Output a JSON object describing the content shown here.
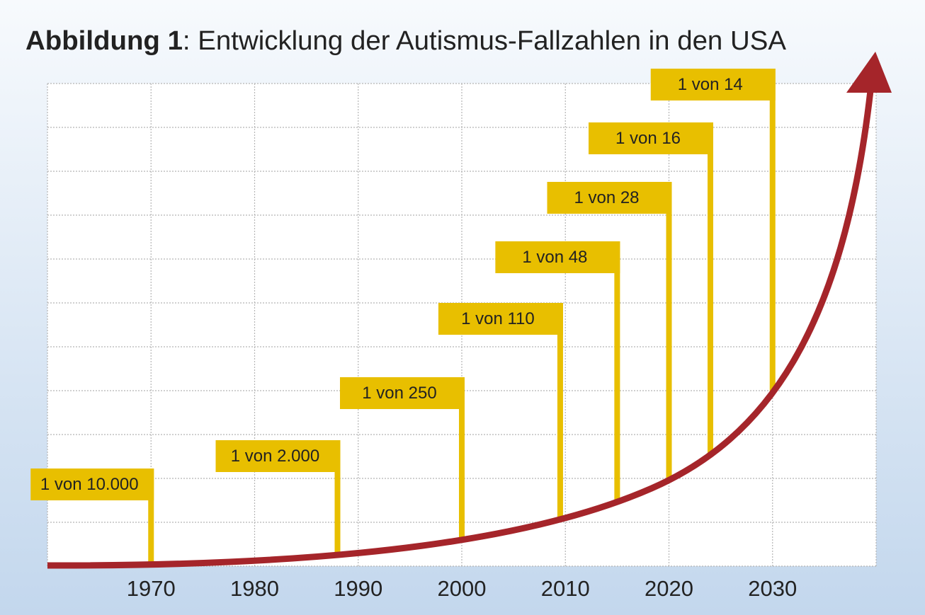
{
  "chart_data": {
    "type": "flag",
    "figure_label": "Abbildung 1",
    "title": ": Entwicklung der Autismus-Fallzahlen in den USA",
    "x": [
      1970,
      1988,
      2000,
      2009.5,
      2015,
      2020,
      2024,
      2030
    ],
    "values": [
      10000,
      2000,
      250,
      110,
      48,
      28,
      16,
      14
    ],
    "value_labels": [
      "1 von 10.000",
      "1 von 2.000",
      "1 von 250",
      "1 von 110",
      "1 von 48",
      "1 von 28",
      "1 von 16",
      "1 von 14"
    ],
    "xlim": [
      1960,
      2040
    ],
    "xticks": [
      1970,
      1980,
      1990,
      2000,
      2010,
      2020,
      2030
    ],
    "grid": true,
    "color": "#e8bf00",
    "line_color": "#a5252a"
  }
}
